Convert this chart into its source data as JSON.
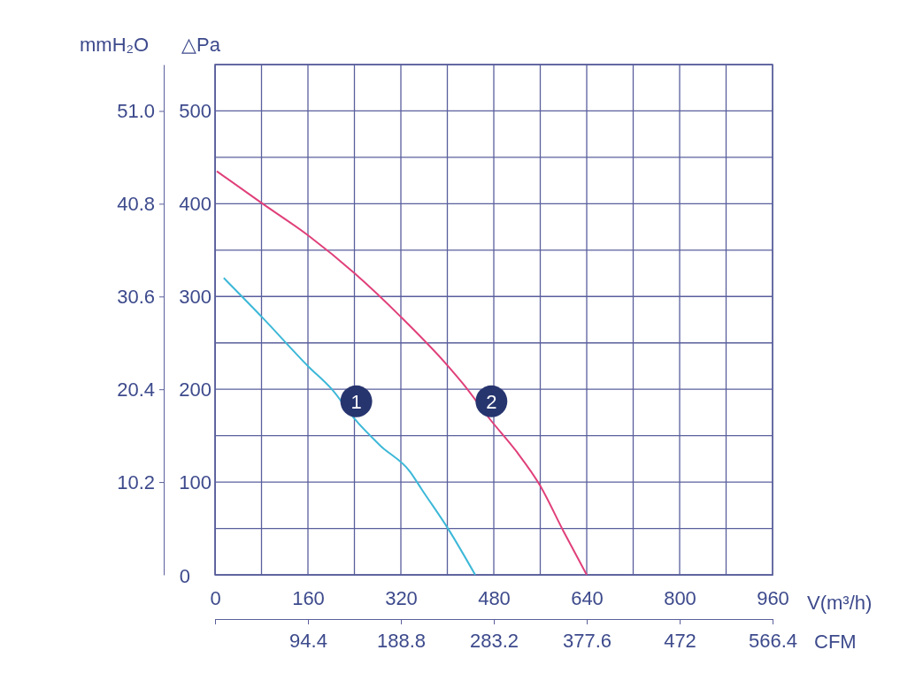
{
  "chart_data": {
    "type": "line",
    "xlabel": "V(m³/h)",
    "ylabel": "△Pa",
    "y2label": "mmH₂O",
    "x2label": "CFM",
    "xlim": [
      0,
      960
    ],
    "xticks": [
      0,
      {
        "value": 80,
        "label": null
      },
      160,
      {
        "value": 240,
        "label": null
      },
      320,
      {
        "value": 400,
        "label": null
      },
      480,
      {
        "value": 560,
        "label": null
      },
      640,
      {
        "value": 720,
        "label": null
      },
      800,
      {
        "value": 880,
        "label": null
      },
      960
    ],
    "ylim": [
      0,
      550
    ],
    "yticks": [
      0,
      {
        "value": 50,
        "label": null
      },
      100,
      {
        "value": 150,
        "label": null
      },
      200,
      {
        "value": 250,
        "label": null
      },
      300,
      {
        "value": 350,
        "label": null
      },
      400,
      {
        "value": 450,
        "label": null
      },
      500,
      {
        "value": 550,
        "label": null
      }
    ],
    "y2lim": [
      0,
      56.1
    ],
    "y2ticks": [
      10.2,
      20.4,
      30.6,
      40.8,
      {
        "value": 51,
        "label": "51.0"
      }
    ],
    "x2lim": [
      0,
      566.4
    ],
    "x2ticks": [
      {
        "value": 0,
        "label": null
      },
      94.4,
      188.8,
      283.2,
      377.6,
      472,
      566.4
    ],
    "grid": true,
    "marker": "none",
    "line_style": "solid",
    "series": [
      {
        "name": "1",
        "color": "#3db8d8",
        "x": [
          15,
          82,
          160,
          204,
          239,
          285,
          336,
          356,
          402,
          448
        ],
        "values": [
          320,
          277,
          225,
          198,
          169,
          139,
          111,
          92,
          49,
          0
        ]
      },
      {
        "name": "2",
        "color": "#e0407a",
        "x": [
          3,
          82,
          160,
          242,
          320,
          397,
          427,
          473,
          519,
          559,
          600,
          640
        ],
        "values": [
          435,
          400,
          366,
          324,
          278,
          228,
          206,
          168,
          133,
          97,
          47,
          0
        ]
      }
    ]
  }
}
